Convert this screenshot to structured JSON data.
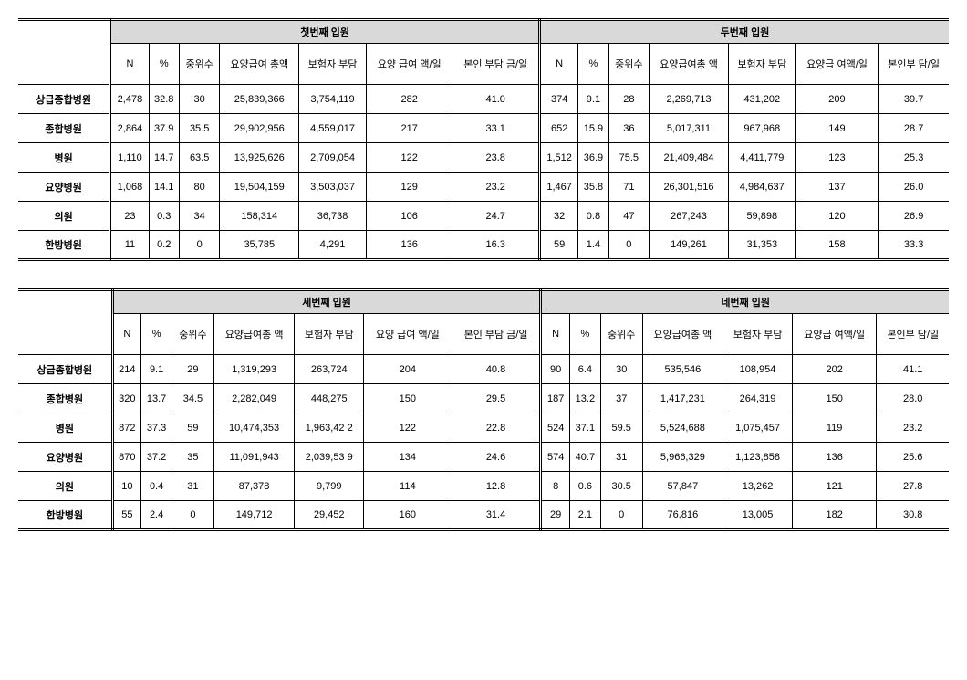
{
  "tables": [
    {
      "groupHeaders": [
        {
          "label": "첫번째 입원",
          "colspan": 7
        },
        {
          "label": "두번째 입원",
          "colspan": 7
        }
      ],
      "subHeaders": [
        "N",
        "%",
        "중위수",
        "요양급여 총액",
        "보험자 부담",
        "요양 급여 액/일",
        "본인 부담 금/일",
        "N",
        "%",
        "중위수",
        "요양급여총 액",
        "보험자 부담",
        "요양급 여액/일",
        "본인부 담/일"
      ],
      "rows": [
        {
          "label": "상급종합병원",
          "cells": [
            "2,478",
            "32.8",
            "30",
            "25,839,366",
            "3,754,119",
            "282",
            "41.0",
            "374",
            "9.1",
            "28",
            "2,269,713",
            "431,202",
            "209",
            "39.7"
          ]
        },
        {
          "label": "종합병원",
          "cells": [
            "2,864",
            "37.9",
            "35.5",
            "29,902,956",
            "4,559,017",
            "217",
            "33.1",
            "652",
            "15.9",
            "36",
            "5,017,311",
            "967,968",
            "149",
            "28.7"
          ]
        },
        {
          "label": "병원",
          "cells": [
            "1,110",
            "14.7",
            "63.5",
            "13,925,626",
            "2,709,054",
            "122",
            "23.8",
            "1,512",
            "36.9",
            "75.5",
            "21,409,484",
            "4,411,779",
            "123",
            "25.3"
          ]
        },
        {
          "label": "요양병원",
          "cells": [
            "1,068",
            "14.1",
            "80",
            "19,504,159",
            "3,503,037",
            "129",
            "23.2",
            "1,467",
            "35.8",
            "71",
            "26,301,516",
            "4,984,637",
            "137",
            "26.0"
          ]
        },
        {
          "label": "의원",
          "cells": [
            "23",
            "0.3",
            "34",
            "158,314",
            "36,738",
            "106",
            "24.7",
            "32",
            "0.8",
            "47",
            "267,243",
            "59,898",
            "120",
            "26.9"
          ]
        },
        {
          "label": "한방병원",
          "cells": [
            "11",
            "0.2",
            "0",
            "35,785",
            "4,291",
            "136",
            "16.3",
            "59",
            "1.4",
            "0",
            "149,261",
            "31,353",
            "158",
            "33.3"
          ]
        }
      ]
    },
    {
      "groupHeaders": [
        {
          "label": "세번째 입원",
          "colspan": 7
        },
        {
          "label": "네번째 입원",
          "colspan": 7
        }
      ],
      "subHeaders": [
        "N",
        "%",
        "중위수",
        "요양급여총 액",
        "보험자 부담",
        "요양 급여 액/일",
        "본인 부담 금/일",
        "N",
        "%",
        "중위수",
        "요양급여총 액",
        "보험자 부담",
        "요양급 여액/일",
        "본인부 담/일"
      ],
      "rows": [
        {
          "label": "상급종합병원",
          "cells": [
            "214",
            "9.1",
            "29",
            "1,319,293",
            "263,724",
            "204",
            "40.8",
            "90",
            "6.4",
            "30",
            "535,546",
            "108,954",
            "202",
            "41.1"
          ]
        },
        {
          "label": "종합병원",
          "cells": [
            "320",
            "13.7",
            "34.5",
            "2,282,049",
            "448,275",
            "150",
            "29.5",
            "187",
            "13.2",
            "37",
            "1,417,231",
            "264,319",
            "150",
            "28.0"
          ]
        },
        {
          "label": "병원",
          "cells": [
            "872",
            "37.3",
            "59",
            "10,474,353",
            "1,963,42 2",
            "122",
            "22.8",
            "524",
            "37.1",
            "59.5",
            "5,524,688",
            "1,075,457",
            "119",
            "23.2"
          ]
        },
        {
          "label": "요양병원",
          "cells": [
            "870",
            "37.2",
            "35",
            "11,091,943",
            "2,039,53 9",
            "134",
            "24.6",
            "574",
            "40.7",
            "31",
            "5,966,329",
            "1,123,858",
            "136",
            "25.6"
          ]
        },
        {
          "label": "의원",
          "cells": [
            "10",
            "0.4",
            "31",
            "87,378",
            "9,799",
            "114",
            "12.8",
            "8",
            "0.6",
            "30.5",
            "57,847",
            "13,262",
            "121",
            "27.8"
          ]
        },
        {
          "label": "한방병원",
          "cells": [
            "55",
            "2.4",
            "0",
            "149,712",
            "29,452",
            "160",
            "31.4",
            "29",
            "2.1",
            "0",
            "76,816",
            "13,005",
            "182",
            "30.8"
          ]
        }
      ]
    }
  ]
}
